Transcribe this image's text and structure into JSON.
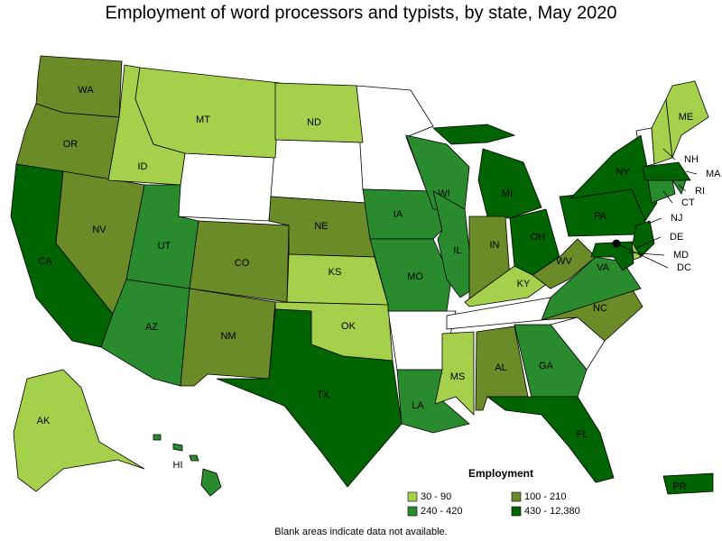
{
  "title": "Employment of word processors and typists, by state, May 2020",
  "legend": {
    "title": "Employment",
    "items": [
      {
        "label": "30 - 90",
        "color": "#a5d04c"
      },
      {
        "label": "100 - 210",
        "color": "#6b8a28"
      },
      {
        "label": "240 - 420",
        "color": "#2a8a2e"
      },
      {
        "label": "430 - 12,380",
        "color": "#006400"
      }
    ]
  },
  "states": [
    {
      "label": "WA",
      "color": "#6b8a28"
    },
    {
      "label": "OR",
      "color": "#6b8a28"
    },
    {
      "label": "CA",
      "color": "#006400"
    },
    {
      "label": "NV",
      "color": "#6b8a28"
    },
    {
      "label": "ID",
      "color": "#a5d04c"
    },
    {
      "label": "MT",
      "color": "#a5d04c"
    },
    {
      "label": "UT",
      "color": "#2a8a2e"
    },
    {
      "label": "AZ",
      "color": "#2a8a2e"
    },
    {
      "label": "CO",
      "color": "#6b8a28"
    },
    {
      "label": "NM",
      "color": "#6b8a28"
    },
    {
      "label": "ND",
      "color": "#a5d04c"
    },
    {
      "label": "NE",
      "color": "#6b8a28"
    },
    {
      "label": "KS",
      "color": "#a5d04c"
    },
    {
      "label": "OK",
      "color": "#a5d04c"
    },
    {
      "label": "TX",
      "color": "#006400"
    },
    {
      "label": "IA",
      "color": "#2a8a2e"
    },
    {
      "label": "MO",
      "color": "#2a8a2e"
    },
    {
      "label": "LA",
      "color": "#2a8a2e"
    },
    {
      "label": "WI",
      "color": "#2a8a2e"
    },
    {
      "label": "IL",
      "color": "#2a8a2e"
    },
    {
      "label": "MI",
      "color": "#006400"
    },
    {
      "label": "IN",
      "color": "#6b8a28"
    },
    {
      "label": "OH",
      "color": "#006400"
    },
    {
      "label": "KY",
      "color": "#a5d04c"
    },
    {
      "label": "MS",
      "color": "#a5d04c"
    },
    {
      "label": "AL",
      "color": "#6b8a28"
    },
    {
      "label": "GA",
      "color": "#2a8a2e"
    },
    {
      "label": "FL",
      "color": "#006400"
    },
    {
      "label": "NC",
      "color": "#6b8a28"
    },
    {
      "label": "VA",
      "color": "#2a8a2e"
    },
    {
      "label": "WV",
      "color": "#6b8a28"
    },
    {
      "label": "PA",
      "color": "#006400"
    },
    {
      "label": "NY",
      "color": "#006400"
    },
    {
      "label": "NH",
      "color": "#a5d04c"
    },
    {
      "label": "ME",
      "color": "#a5d04c"
    },
    {
      "label": "MA",
      "color": "#006400"
    },
    {
      "label": "RI",
      "color": "#2a8a2e"
    },
    {
      "label": "CT",
      "color": "#2a8a2e"
    },
    {
      "label": "NJ",
      "color": "#006400"
    },
    {
      "label": "DE",
      "color": "#a5d04c"
    },
    {
      "label": "MD",
      "color": "#006400"
    },
    {
      "label": "DC",
      "color": "#000000"
    },
    {
      "label": "AK",
      "color": "#a5d04c"
    },
    {
      "label": "HI",
      "color": "#2a8a2e"
    },
    {
      "label": "PR",
      "color": "#006400"
    }
  ],
  "note": "Blank areas indicate data not available."
}
